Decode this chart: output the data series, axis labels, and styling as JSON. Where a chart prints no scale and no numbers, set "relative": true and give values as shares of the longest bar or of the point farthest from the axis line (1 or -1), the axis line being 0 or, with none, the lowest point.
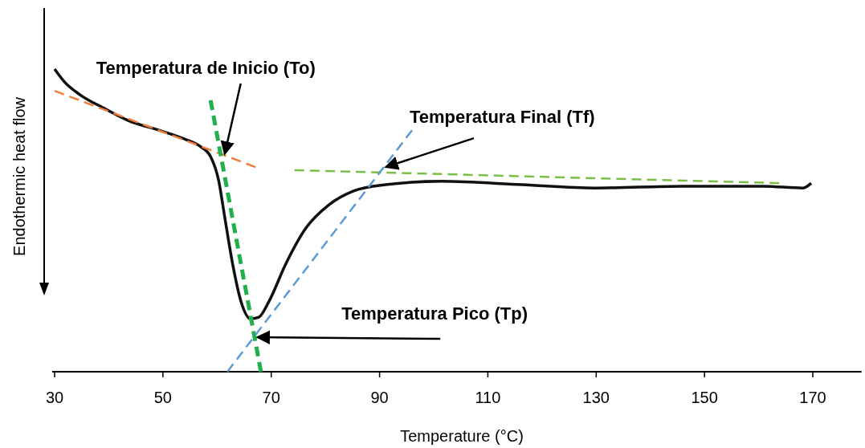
{
  "chart_data": {
    "type": "line",
    "relative": true,
    "xlabel": "Temperature (°C)",
    "ylabel": "Endothermic heat flow",
    "xlim": [
      30,
      179
    ],
    "xticks": [
      30,
      50,
      70,
      90,
      110,
      130,
      150,
      170
    ],
    "grid": false,
    "marker": "none",
    "series": [
      {
        "color": "#111111",
        "line_style": "solid",
        "x": [
          30,
          31.8,
          34.7,
          39.2,
          43.6,
          49.6,
          54.0,
          57.0,
          58.8,
          60.3,
          61.4,
          62.9,
          64.4,
          66.2,
          67.7,
          69.6,
          72.6,
          76.3,
          80.7,
          85.2,
          91.1,
          101.5,
          116.3,
          129.7,
          146.0,
          160.8,
          168.2,
          169.7
        ],
        "values": [
          1.0,
          0.958,
          0.915,
          0.87,
          0.83,
          0.796,
          0.769,
          0.743,
          0.711,
          0.631,
          0.512,
          0.353,
          0.233,
          0.175,
          0.18,
          0.233,
          0.353,
          0.472,
          0.552,
          0.597,
          0.618,
          0.629,
          0.618,
          0.607,
          0.613,
          0.613,
          0.607,
          0.623
        ]
      },
      {
        "type": "line",
        "color": "#f07f3c",
        "line_style": "dashed",
        "x": [
          30,
          67.1
        ],
        "values": [
          0.928,
          0.676
        ]
      },
      {
        "type": "line",
        "color": "#22b04b",
        "line_style": "dashed",
        "x": [
          58.8,
          68.1
        ],
        "values": [
          0.897,
          0.0
        ]
      },
      {
        "type": "line",
        "color": "#7cbf45",
        "line_style": "dashed",
        "x": [
          74.3,
          163.8
        ],
        "values": [
          0.666,
          0.623
        ]
      },
      {
        "type": "line",
        "color": "#5b9bd5",
        "line_style": "dashed",
        "x": [
          61.9,
          96.0
        ],
        "values": [
          0.0,
          0.798
        ]
      }
    ],
    "annotations": [
      {
        "text": "Temperatura de Inicio (To)",
        "x": 61.4,
        "y": 0.719
      },
      {
        "text": "Temperatura Final (Tf)",
        "x": 91.1,
        "y": 0.676
      },
      {
        "text": "Temperatura Pico (Tp)",
        "x": 67.4,
        "y": 0.114
      }
    ]
  }
}
